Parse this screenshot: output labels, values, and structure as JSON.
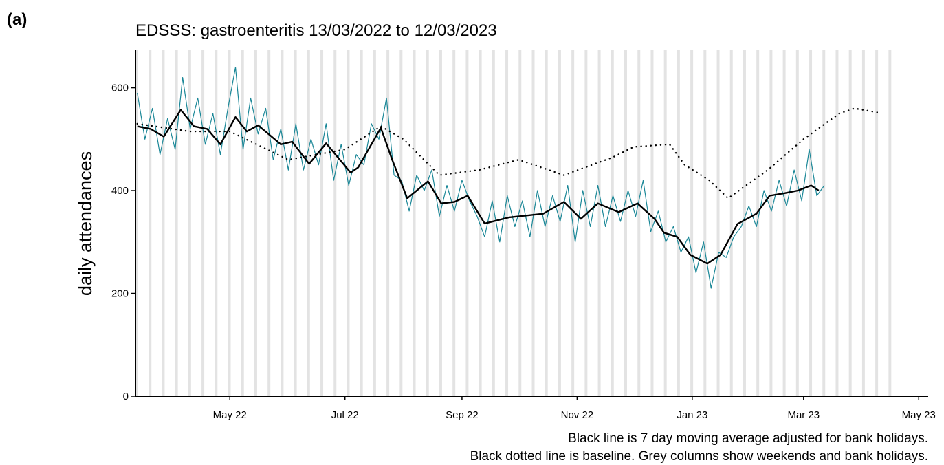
{
  "panel_label": "(a)",
  "chart_data": {
    "type": "line",
    "title": "EDSSS: gastroenteritis 13/03/2022 to 12/03/2023",
    "ylabel": "daily attendances",
    "notes": [
      "Black line is 7 day moving average adjusted for bank holidays.",
      "Black dotted line is baseline. Grey columns show weekends and bank holidays."
    ],
    "xlim": [
      "2022-03-12",
      "2023-05-06"
    ],
    "xticks": [
      {
        "value": "2022-05-01",
        "label": "May 22"
      },
      {
        "value": "2022-07-01",
        "label": "Jul 22"
      },
      {
        "value": "2022-09-01",
        "label": "Sep 22"
      },
      {
        "value": "2022-11-01",
        "label": "Nov 22"
      },
      {
        "value": "2023-01-01",
        "label": "Jan 23"
      },
      {
        "value": "2023-03-01",
        "label": "Mar 23"
      },
      {
        "value": "2023-05-01",
        "label": "May 23"
      }
    ],
    "ylim": [
      0,
      673
    ],
    "yticks": [
      0,
      200,
      400,
      600
    ],
    "shading_color": "#e3e3e3",
    "series": [
      {
        "color": "#1a8797",
        "style": "solid",
        "width": 1.2,
        "x": [
          "2022-03-13",
          "2022-03-17",
          "2022-03-21",
          "2022-03-25",
          "2022-03-29",
          "2022-04-02",
          "2022-04-06",
          "2022-04-10",
          "2022-04-14",
          "2022-04-18",
          "2022-04-22",
          "2022-04-26",
          "2022-04-30",
          "2022-05-04",
          "2022-05-08",
          "2022-05-12",
          "2022-05-16",
          "2022-05-20",
          "2022-05-24",
          "2022-05-28",
          "2022-06-01",
          "2022-06-05",
          "2022-06-09",
          "2022-06-13",
          "2022-06-17",
          "2022-06-21",
          "2022-06-25",
          "2022-06-29",
          "2022-07-03",
          "2022-07-07",
          "2022-07-11",
          "2022-07-15",
          "2022-07-19",
          "2022-07-23",
          "2022-07-27",
          "2022-07-31",
          "2022-08-04",
          "2022-08-08",
          "2022-08-12",
          "2022-08-16",
          "2022-08-20",
          "2022-08-24",
          "2022-08-28",
          "2022-09-01",
          "2022-09-05",
          "2022-09-09",
          "2022-09-13",
          "2022-09-17",
          "2022-09-21",
          "2022-09-25",
          "2022-09-29",
          "2022-10-03",
          "2022-10-07",
          "2022-10-11",
          "2022-10-15",
          "2022-10-19",
          "2022-10-23",
          "2022-10-27",
          "2022-10-31",
          "2022-11-04",
          "2022-11-08",
          "2022-11-12",
          "2022-11-16",
          "2022-11-20",
          "2022-11-24",
          "2022-11-28",
          "2022-12-02",
          "2022-12-06",
          "2022-12-10",
          "2022-12-14",
          "2022-12-18",
          "2022-12-22",
          "2022-12-26",
          "2022-12-30",
          "2023-01-03",
          "2023-01-07",
          "2023-01-11",
          "2023-01-15",
          "2023-01-19",
          "2023-01-23",
          "2023-01-27",
          "2023-01-31",
          "2023-02-04",
          "2023-02-08",
          "2023-02-12",
          "2023-02-16",
          "2023-02-20",
          "2023-02-24",
          "2023-02-28",
          "2023-03-04",
          "2023-03-08",
          "2023-03-12"
        ],
        "values": [
          590,
          500,
          560,
          470,
          540,
          480,
          620,
          520,
          580,
          490,
          550,
          470,
          560,
          640,
          480,
          580,
          510,
          560,
          460,
          520,
          440,
          530,
          440,
          500,
          450,
          530,
          420,
          490,
          410,
          470,
          450,
          530,
          500,
          580,
          430,
          420,
          360,
          430,
          400,
          440,
          350,
          410,
          360,
          420,
          380,
          350,
          310,
          380,
          300,
          390,
          330,
          380,
          310,
          400,
          330,
          390,
          340,
          410,
          300,
          400,
          330,
          410,
          330,
          390,
          340,
          400,
          350,
          420,
          320,
          360,
          300,
          330,
          280,
          310,
          240,
          300,
          210,
          280,
          270,
          310,
          330,
          370,
          330,
          400,
          360,
          420,
          370,
          440,
          380,
          480,
          390,
          410
        ]
      },
      {
        "color": "#000000",
        "style": "solid",
        "width": 2.4,
        "x": [
          "2022-03-13",
          "2022-03-20",
          "2022-03-27",
          "2022-04-05",
          "2022-04-12",
          "2022-04-19",
          "2022-04-26",
          "2022-05-04",
          "2022-05-10",
          "2022-05-16",
          "2022-05-28",
          "2022-06-03",
          "2022-06-12",
          "2022-06-21",
          "2022-07-04",
          "2022-07-08",
          "2022-07-20",
          "2022-07-26",
          "2022-08-03",
          "2022-08-14",
          "2022-08-21",
          "2022-08-28",
          "2022-09-04",
          "2022-09-13",
          "2022-09-26",
          "2022-10-14",
          "2022-10-25",
          "2022-11-03",
          "2022-11-12",
          "2022-11-23",
          "2022-12-03",
          "2022-12-12",
          "2022-12-17",
          "2022-12-24",
          "2022-12-31",
          "2023-01-09",
          "2023-01-16",
          "2023-01-25",
          "2023-02-04",
          "2023-02-11",
          "2023-02-19",
          "2023-02-26",
          "2023-03-05",
          "2023-03-09"
        ],
        "values": [
          525,
          520,
          505,
          557,
          525,
          520,
          490,
          543,
          515,
          527,
          490,
          495,
          452,
          492,
          435,
          445,
          522,
          460,
          385,
          418,
          375,
          378,
          390,
          336,
          348,
          355,
          378,
          345,
          375,
          358,
          375,
          345,
          318,
          310,
          275,
          258,
          275,
          335,
          355,
          390,
          395,
          400,
          410,
          400
        ]
      },
      {
        "color": "#000000",
        "style": "dotted",
        "width": 2.4,
        "x": [
          "2022-03-13",
          "2022-04-10",
          "2022-05-01",
          "2022-06-01",
          "2022-07-01",
          "2022-07-20",
          "2022-08-01",
          "2022-08-20",
          "2022-09-10",
          "2022-10-01",
          "2022-10-25",
          "2022-11-20",
          "2022-12-01",
          "2022-12-20",
          "2022-12-28",
          "2023-01-10",
          "2023-01-20",
          "2023-02-10",
          "2023-03-01",
          "2023-03-20",
          "2023-03-28",
          "2023-04-09"
        ],
        "values": [
          530,
          515,
          515,
          460,
          480,
          525,
          500,
          430,
          440,
          460,
          430,
          465,
          485,
          490,
          450,
          420,
          385,
          440,
          500,
          550,
          560,
          552
        ]
      }
    ]
  }
}
